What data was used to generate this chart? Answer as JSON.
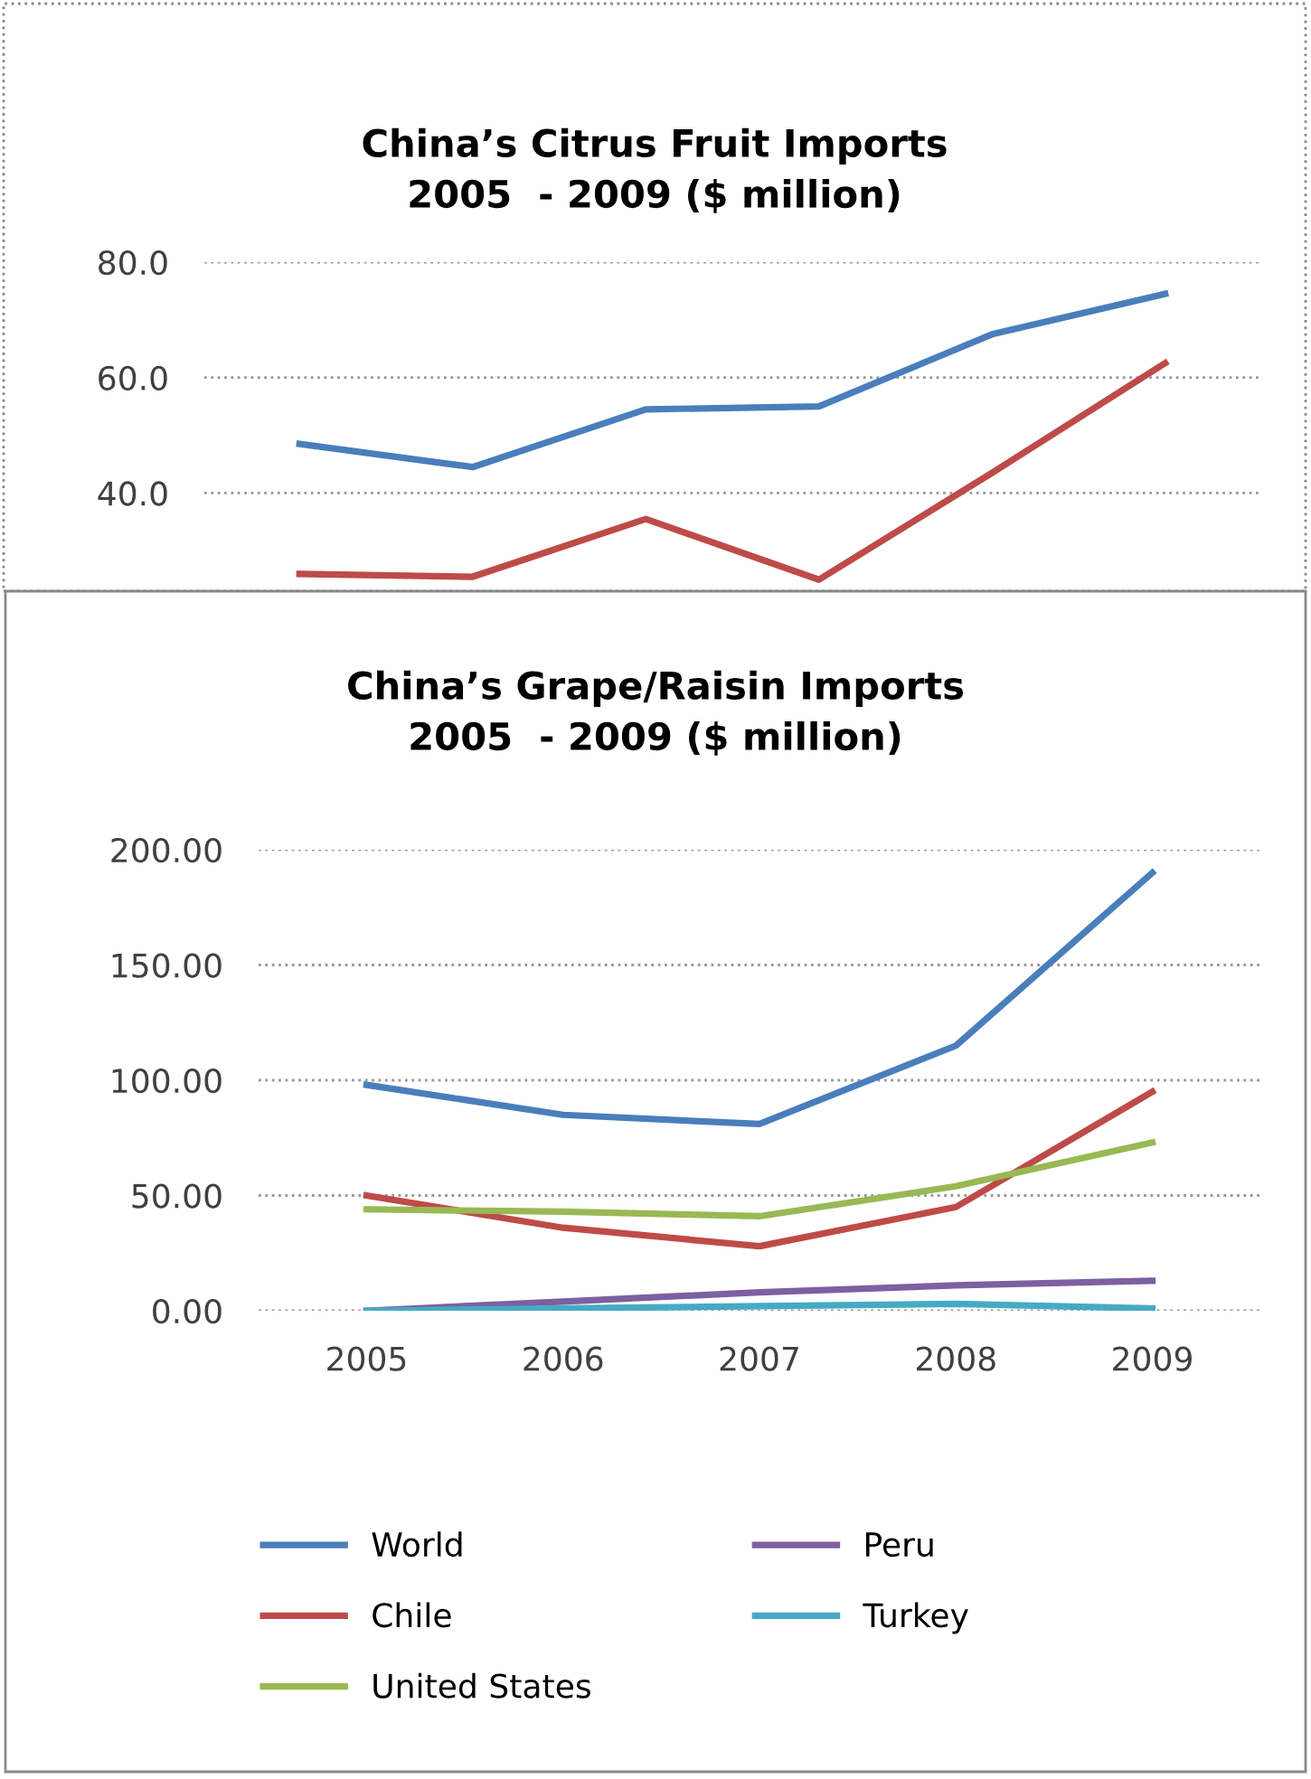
{
  "chart_data": [
    {
      "type": "line",
      "title": "China’s Citrus Fruit Imports\n2005  - 2009 ($ million)",
      "categories": [
        null,
        null,
        null,
        null,
        null,
        null
      ],
      "series": [
        {
          "color": "#4a7ebb",
          "values": [
            48.5,
            44.5,
            54.5,
            55,
            67.5,
            74.5
          ]
        },
        {
          "color": "#be4b48",
          "values": [
            26,
            25.5,
            35.5,
            25,
            43.5,
            62.5
          ]
        }
      ],
      "ylim": [
        23,
        80
      ],
      "yticks": [
        {
          "value": 40,
          "label": "40.0"
        },
        {
          "value": 60,
          "label": "60.0"
        },
        {
          "value": 80,
          "label": "80.0"
        }
      ],
      "grid": "y",
      "tick_labels": "y",
      "marker": "none",
      "line_style": "solid"
    },
    {
      "type": "line",
      "title": "China’s Grape/Raisin Imports\n2005  - 2009 ($ million)",
      "categories": [
        "2005",
        "2006",
        "2007",
        "2008",
        "2009"
      ],
      "series": [
        {
          "name": "World",
          "color": "#4a7ebb",
          "values": [
            98,
            85,
            81,
            115,
            190
          ]
        },
        {
          "name": "Chile",
          "color": "#be4b48",
          "values": [
            50,
            36,
            28,
            45,
            95
          ]
        },
        {
          "name": "United States",
          "color": "#98b954",
          "values": [
            44,
            43,
            41,
            54,
            73
          ]
        },
        {
          "name": "Peru",
          "color": "#7d60a0",
          "values": [
            0,
            4,
            8,
            11,
            13
          ]
        },
        {
          "name": "Turkey",
          "color": "#46aac5",
          "values": [
            0,
            1,
            2,
            3,
            1
          ]
        }
      ],
      "ylim": [
        0,
        200
      ],
      "yticks": [
        {
          "value": 0,
          "label": "0.00"
        },
        {
          "value": 50,
          "label": "50.00"
        },
        {
          "value": 100,
          "label": "100.00"
        },
        {
          "value": 150,
          "label": "150.00"
        },
        {
          "value": 200,
          "label": "200.00"
        }
      ],
      "grid": "y",
      "legend": "bottom",
      "marker": "none",
      "line_style": "solid"
    }
  ]
}
